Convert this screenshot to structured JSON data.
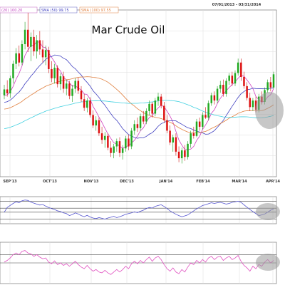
{
  "date_range": "07/01/2013 - 03/31/2014",
  "chart_data": {
    "type": "line",
    "title": "Mar Crude Oil",
    "x_labels": [
      "SEP'13",
      "OCT'13",
      "NOV'13",
      "DEC'13",
      "JAN'14",
      "FEB'14",
      "MAR'14",
      "APR'14"
    ],
    "legend": [
      {
        "label": "(20) 100.20",
        "color": "#d040c0"
      },
      {
        "label": "SMA (50) 99.75",
        "color": "#4040c0"
      },
      {
        "label": "SMA (100) 97.55",
        "color": "#e08040"
      }
    ],
    "price_range": [
      89,
      114
    ],
    "candles": [
      [
        101.2,
        102.8,
        100.6,
        102.1
      ],
      [
        102.1,
        103.5,
        101.0,
        101.5
      ],
      [
        101.5,
        104.2,
        100.8,
        103.8
      ],
      [
        103.8,
        106.5,
        103.0,
        106.0
      ],
      [
        106.0,
        108.4,
        105.2,
        107.6
      ],
      [
        107.6,
        108.8,
        105.6,
        106.2
      ],
      [
        106.2,
        109.6,
        105.8,
        109.0
      ],
      [
        109.0,
        112.4,
        108.2,
        111.2
      ],
      [
        111.2,
        113.8,
        107.8,
        108.6
      ],
      [
        108.6,
        110.8,
        106.4,
        110.1
      ],
      [
        110.1,
        111.2,
        107.2,
        107.9
      ],
      [
        107.9,
        110.4,
        106.8,
        109.6
      ],
      [
        109.6,
        111.0,
        107.4,
        108.2
      ],
      [
        108.2,
        109.6,
        106.2,
        107.0
      ],
      [
        107.0,
        108.8,
        105.8,
        108.1
      ],
      [
        108.1,
        108.6,
        104.6,
        105.2
      ],
      [
        105.2,
        106.4,
        103.2,
        103.8
      ],
      [
        103.8,
        106.0,
        103.0,
        105.4
      ],
      [
        105.4,
        105.8,
        102.4,
        102.9
      ],
      [
        102.9,
        104.6,
        102.0,
        104.1
      ],
      [
        104.1,
        104.8,
        101.6,
        102.2
      ],
      [
        102.2,
        103.6,
        101.2,
        103.0
      ],
      [
        103.0,
        103.4,
        100.6,
        101.1
      ],
      [
        101.1,
        102.8,
        100.2,
        102.2
      ],
      [
        102.2,
        103.8,
        101.6,
        103.4
      ],
      [
        103.4,
        103.9,
        101.4,
        101.9
      ],
      [
        101.9,
        102.6,
        100.2,
        100.6
      ],
      [
        100.6,
        101.4,
        98.8,
        99.3
      ],
      [
        99.3,
        100.8,
        98.6,
        100.4
      ],
      [
        100.4,
        100.9,
        97.8,
        98.2
      ],
      [
        98.2,
        98.9,
        96.2,
        96.6
      ],
      [
        96.6,
        98.0,
        95.8,
        97.4
      ],
      [
        97.4,
        97.8,
        95.0,
        95.4
      ],
      [
        95.4,
        96.4,
        93.8,
        94.4
      ],
      [
        94.4,
        95.6,
        93.2,
        95.0
      ],
      [
        95.0,
        95.4,
        92.8,
        93.2
      ],
      [
        93.2,
        94.2,
        91.8,
        92.4
      ],
      [
        92.4,
        93.8,
        91.6,
        93.4
      ],
      [
        93.4,
        94.6,
        92.6,
        94.2
      ],
      [
        94.2,
        94.8,
        91.8,
        92.4
      ],
      [
        92.4,
        93.6,
        91.4,
        93.1
      ],
      [
        93.1,
        95.0,
        92.6,
        94.6
      ],
      [
        94.6,
        95.2,
        92.8,
        93.4
      ],
      [
        93.4,
        96.2,
        93.0,
        95.8
      ],
      [
        95.8,
        97.4,
        95.2,
        96.8
      ],
      [
        96.8,
        97.8,
        95.6,
        96.2
      ],
      [
        96.2,
        98.4,
        95.8,
        98.0
      ],
      [
        98.0,
        98.8,
        96.8,
        97.2
      ],
      [
        97.2,
        99.2,
        96.8,
        98.8
      ],
      [
        98.8,
        100.4,
        98.2,
        99.9
      ],
      [
        99.9,
        100.2,
        97.8,
        98.4
      ],
      [
        98.4,
        100.8,
        98.0,
        100.4
      ],
      [
        100.4,
        101.6,
        99.6,
        101.0
      ],
      [
        101.0,
        101.4,
        99.2,
        99.6
      ],
      [
        99.6,
        100.2,
        97.0,
        97.4
      ],
      [
        97.4,
        98.2,
        95.4,
        95.8
      ],
      [
        95.8,
        96.6,
        93.6,
        94.0
      ],
      [
        94.0,
        95.2,
        92.6,
        94.8
      ],
      [
        94.8,
        95.4,
        92.0,
        92.6
      ],
      [
        92.6,
        93.4,
        91.0,
        91.6
      ],
      [
        91.6,
        93.2,
        90.8,
        92.8
      ],
      [
        92.8,
        93.6,
        91.2,
        91.8
      ],
      [
        91.8,
        94.2,
        91.4,
        93.8
      ],
      [
        93.8,
        95.8,
        93.2,
        95.4
      ],
      [
        95.4,
        96.4,
        94.6,
        95.0
      ],
      [
        95.0,
        97.6,
        94.8,
        97.2
      ],
      [
        97.2,
        97.8,
        95.8,
        96.4
      ],
      [
        96.4,
        98.6,
        96.0,
        98.2
      ],
      [
        98.2,
        99.4,
        97.6,
        97.8
      ],
      [
        97.8,
        100.4,
        97.4,
        100.0
      ],
      [
        100.0,
        101.6,
        99.6,
        101.2
      ],
      [
        101.2,
        101.8,
        99.8,
        100.4
      ],
      [
        100.4,
        102.6,
        100.0,
        102.2
      ],
      [
        102.2,
        103.4,
        101.6,
        102.8
      ],
      [
        102.8,
        103.6,
        101.0,
        101.4
      ],
      [
        101.4,
        103.8,
        101.0,
        103.4
      ],
      [
        103.4,
        104.6,
        102.8,
        104.2
      ],
      [
        104.2,
        104.8,
        102.6,
        103.0
      ],
      [
        103.0,
        105.0,
        102.6,
        104.6
      ],
      [
        104.6,
        106.8,
        104.2,
        106.2
      ],
      [
        106.2,
        106.8,
        103.4,
        104.0
      ],
      [
        104.0,
        104.8,
        102.2,
        102.6
      ],
      [
        102.6,
        103.2,
        100.4,
        100.8
      ],
      [
        100.8,
        101.6,
        98.8,
        99.4
      ],
      [
        99.4,
        100.8,
        98.8,
        100.4
      ],
      [
        100.4,
        101.0,
        98.6,
        99.0
      ],
      [
        99.0,
        101.4,
        98.6,
        101.0
      ],
      [
        101.0,
        101.8,
        99.8,
        100.2
      ],
      [
        100.2,
        102.4,
        99.8,
        102.0
      ],
      [
        102.0,
        103.6,
        101.6,
        103.2
      ],
      [
        103.2,
        104.0,
        101.8,
        102.4
      ],
      [
        102.4,
        104.8,
        102.2,
        104.4
      ]
    ],
    "indicator_1_range": [
      -100,
      100
    ],
    "indicator_1_levels": [
      65,
      15,
      -15,
      -65
    ],
    "indicator_1": [
      -15,
      20,
      35,
      50,
      62,
      55,
      70,
      75,
      72,
      60,
      52,
      45,
      38,
      42,
      30,
      20,
      12,
      5,
      -5,
      -10,
      -20,
      -25,
      -40,
      -32,
      -20,
      -28,
      -40,
      -48,
      -38,
      -50,
      -58,
      -62,
      -55,
      -60,
      -66,
      -58,
      -52,
      -45,
      -55,
      -48,
      -40,
      -30,
      -25,
      -20,
      -12,
      -18,
      -8,
      0,
      12,
      20,
      16,
      28,
      35,
      40,
      28,
      12,
      -5,
      -18,
      -30,
      -40,
      -48,
      -42,
      -35,
      -20,
      -5,
      10,
      22,
      35,
      40,
      48,
      55,
      50,
      55,
      58,
      52,
      45,
      50,
      58,
      62,
      66,
      58,
      40,
      22,
      5,
      -10,
      -25,
      -40,
      -35,
      -28,
      -15,
      0,
      10
    ],
    "indicator_2_range": [
      0,
      100
    ],
    "indicator_2_levels": [
      70,
      50
    ],
    "indicator_2": [
      52,
      56,
      62,
      70,
      74,
      70,
      78,
      80,
      74,
      72,
      66,
      70,
      64,
      60,
      62,
      52,
      48,
      55,
      46,
      50,
      44,
      48,
      42,
      48,
      54,
      46,
      40,
      36,
      44,
      36,
      30,
      34,
      28,
      26,
      32,
      26,
      22,
      28,
      34,
      28,
      34,
      42,
      36,
      48,
      54,
      48,
      56,
      50,
      58,
      64,
      54,
      62,
      66,
      58,
      46,
      36,
      30,
      38,
      28,
      24,
      34,
      28,
      40,
      50,
      46,
      56,
      50,
      58,
      52,
      62,
      66,
      58,
      64,
      66,
      56,
      62,
      66,
      58,
      62,
      68,
      54,
      44,
      38,
      30,
      42,
      36,
      46,
      42,
      52,
      58,
      50,
      56
    ]
  }
}
